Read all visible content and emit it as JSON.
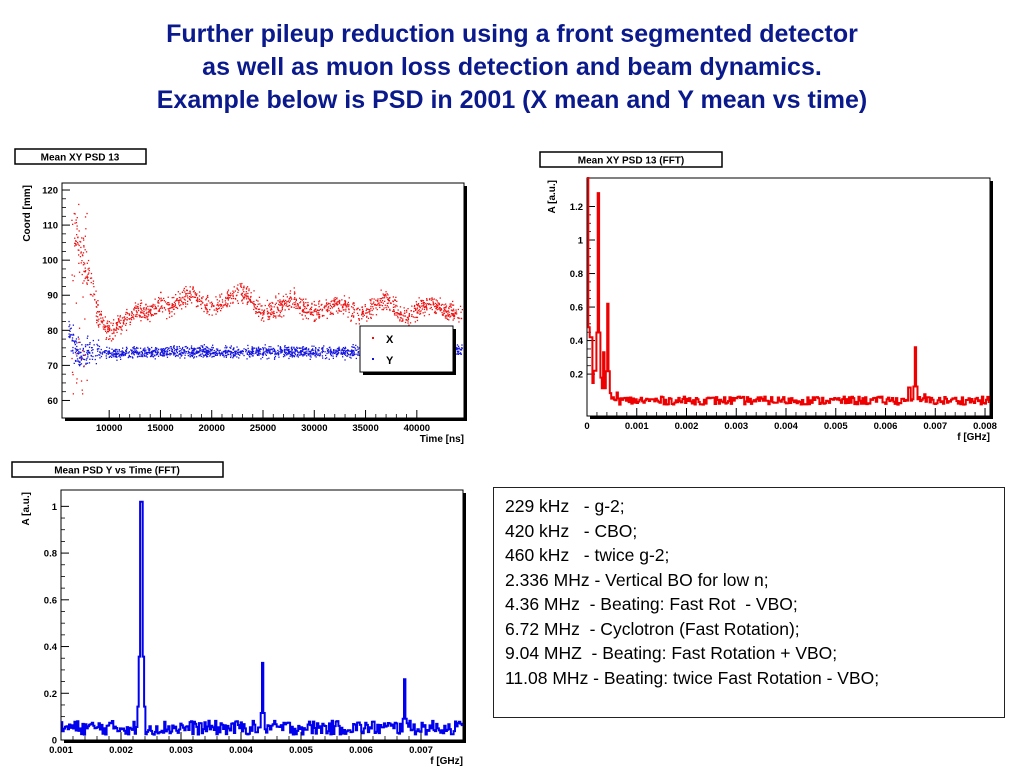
{
  "title": {
    "line1": "Further pileup reduction using a front segmented detector",
    "line2": "as well as muon loss detection and beam dynamics.",
    "line3": "Example below is PSD in 2001 (X mean and Y mean  vs time)"
  },
  "colors": {
    "title": "#0a1a8c",
    "x_series": "#ee1111",
    "y_series": "#1414dd",
    "fft_red": "#ee0000",
    "fft_blue": "#0000ee"
  },
  "notes": {
    "lines": [
      "229 kHz   - g-2;",
      "420 kHz   - CBO;",
      "460 kHz   - twice g-2;",
      "2.336 MHz - Vertical BO for low n;",
      "4.36 MHz  - Beating: Fast Rot  - VBO;",
      "6.72 MHz  - Cyclotron (Fast Rotation);",
      "9.04 MHZ  - Beating: Fast Rotation + VBO;",
      "11.08 MHz - Beating: twice Fast Rotation - VBO;"
    ]
  },
  "chart_data": [
    {
      "type": "scatter",
      "title": "Mean XY PSD 13",
      "xlabel": "Time [ns]",
      "ylabel": "Coord [mm]",
      "xlim": [
        5400,
        44600
      ],
      "ylim": [
        55,
        122
      ],
      "xticks": [
        10000,
        15000,
        20000,
        25000,
        30000,
        35000,
        40000
      ],
      "xtick_labels": [
        "10000",
        "15000",
        "20000",
        "25000",
        "30000",
        "35000",
        "40000"
      ],
      "yticks": [
        60,
        70,
        80,
        90,
        100,
        110,
        120
      ],
      "ytick_labels": [
        "60",
        "70",
        "80",
        "90",
        "100",
        "110",
        "120"
      ],
      "legend": {
        "position": "top-right",
        "entries": [
          "X",
          "Y"
        ]
      },
      "series": [
        {
          "name": "X",
          "color": "#ee1111",
          "model": "damped oscillation",
          "points": [
            [
              6500,
              110
            ],
            [
              7000,
              106
            ],
            [
              7500,
              100
            ],
            [
              8000,
              95
            ],
            [
              8500,
              89
            ],
            [
              9000,
              84
            ],
            [
              9500,
              81
            ],
            [
              10000,
              80
            ],
            [
              11000,
              82
            ],
            [
              12000,
              84
            ],
            [
              13000,
              86
            ],
            [
              14000,
              85
            ],
            [
              15000,
              88
            ],
            [
              16000,
              86
            ],
            [
              17000,
              89
            ],
            [
              18000,
              91
            ],
            [
              19000,
              88
            ],
            [
              20000,
              86
            ],
            [
              21000,
              88
            ],
            [
              22000,
              90
            ],
            [
              23000,
              91
            ],
            [
              24000,
              88
            ],
            [
              25000,
              85
            ],
            [
              26000,
              86
            ],
            [
              27000,
              88
            ],
            [
              28000,
              89
            ],
            [
              29000,
              86
            ],
            [
              30000,
              85
            ],
            [
              31000,
              86
            ],
            [
              32000,
              88
            ],
            [
              33000,
              87
            ],
            [
              34000,
              85
            ],
            [
              35000,
              85
            ],
            [
              36000,
              88
            ],
            [
              37000,
              89
            ],
            [
              38000,
              86
            ],
            [
              39000,
              84
            ],
            [
              40000,
              86
            ],
            [
              41000,
              88
            ],
            [
              42000,
              87
            ],
            [
              43000,
              85
            ],
            [
              44000,
              85
            ]
          ]
        },
        {
          "name": "Y",
          "color": "#1414dd",
          "model": "flat band",
          "points": [
            [
              6000,
              80
            ],
            [
              6500,
              76
            ],
            [
              7000,
              73
            ],
            [
              7500,
              73
            ],
            [
              8000,
              73.5
            ],
            [
              10000,
              73.5
            ],
            [
              15000,
              74
            ],
            [
              20000,
              74
            ],
            [
              25000,
              74
            ],
            [
              30000,
              74
            ],
            [
              35000,
              74
            ],
            [
              40000,
              74
            ],
            [
              44000,
              74.5
            ]
          ]
        }
      ]
    },
    {
      "type": "line",
      "title": "Mean XY PSD 13 (FFT)",
      "xlabel": "f [GHz]",
      "ylabel": "A [a.u.]",
      "xlim": [
        0,
        0.0081
      ],
      "ylim": [
        -0.05,
        1.37
      ],
      "xticks": [
        0,
        0.001,
        0.002,
        0.003,
        0.004,
        0.005,
        0.006,
        0.007,
        0.008
      ],
      "xtick_labels": [
        "0",
        "0.001",
        "0.002",
        "0.003",
        "0.004",
        "0.005",
        "0.006",
        "0.007",
        "0.008"
      ],
      "yticks": [
        0.2,
        0.4,
        0.6,
        0.8,
        1,
        1.2
      ],
      "ytick_labels": [
        "0.2",
        "0.4",
        "0.6",
        "0.8",
        "1",
        "1.2"
      ],
      "series": [
        {
          "name": "",
          "color": "#ee0000",
          "baseline": 0.04,
          "peaks": [
            [
              0.0,
              1.37
            ],
            [
              8e-05,
              0.42
            ],
            [
              0.00016,
              0.22
            ],
            [
              0.00022,
              1.28
            ],
            [
              0.00034,
              0.33
            ],
            [
              0.00042,
              0.62
            ],
            [
              0.0006,
              0.09
            ],
            [
              0.00648,
              0.12
            ],
            [
              0.0066,
              0.36
            ],
            [
              0.0068,
              0.08
            ]
          ]
        }
      ]
    },
    {
      "type": "line",
      "title": "Mean PSD Y vs Time (FFT)",
      "xlabel": "f [GHz]",
      "ylabel": "A [a.u.]",
      "xlim": [
        0.001,
        0.0077
      ],
      "ylim": [
        0,
        1.07
      ],
      "xticks": [
        0.001,
        0.002,
        0.003,
        0.004,
        0.005,
        0.006,
        0.007
      ],
      "xtick_labels": [
        "0.001",
        "0.002",
        "0.003",
        "0.004",
        "0.005",
        "0.006",
        "0.007"
      ],
      "yticks": [
        0,
        0.2,
        0.4,
        0.6,
        0.8,
        1
      ],
      "ytick_labels": [
        "0",
        "0.2",
        "0.4",
        "0.6",
        "0.8",
        "1"
      ],
      "series": [
        {
          "name": "",
          "color": "#0000ee",
          "baseline": 0.05,
          "peaks": [
            [
              0.00234,
              1.02
            ],
            [
              0.00436,
              0.33
            ],
            [
              0.00672,
              0.26
            ]
          ]
        }
      ]
    }
  ]
}
